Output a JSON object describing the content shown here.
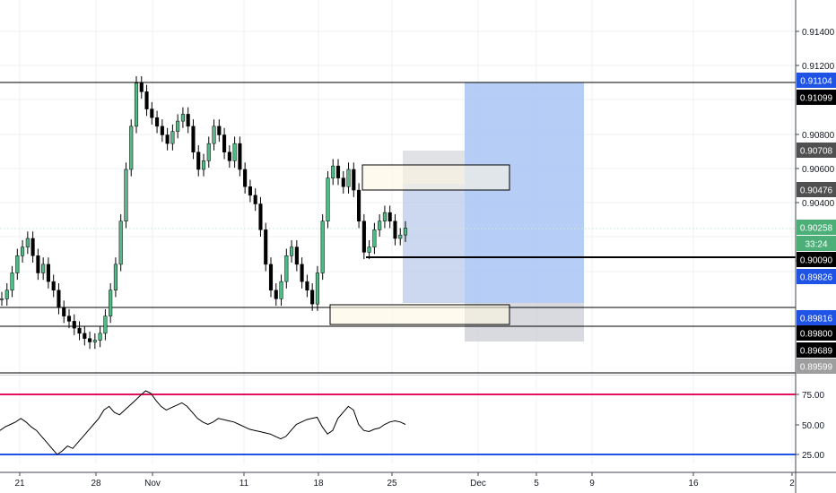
{
  "chart_data": [
    {
      "type": "candlestick",
      "title": "",
      "ylim": [
        0.89599,
        0.915
      ],
      "ytick_labels": [
        "0.91400",
        "0.91200",
        "0.90800",
        "0.90600",
        "0.90400",
        "0.90000"
      ],
      "x_tick_labels": [
        "21",
        "28",
        "Nov",
        "11",
        "18",
        "25",
        "Dec",
        "5",
        "9",
        "16",
        "2"
      ],
      "grid": true,
      "horizontal_levels": [
        0.91104,
        0.9009,
        0.89816,
        0.89689,
        0.89599
      ],
      "price_labels": [
        {
          "text": "0.91104",
          "color": "#1e53e5",
          "text_color": "#ffffff"
        },
        {
          "text": "0.91099",
          "color": "#000000",
          "text_color": "#ffffff"
        },
        {
          "text": "0.90708",
          "color": "#505050",
          "text_color": "#ffffff"
        },
        {
          "text": "0.90476",
          "color": "#505050",
          "text_color": "#ffffff"
        },
        {
          "text": "0.90258",
          "color": "#4caf78",
          "text_color": "#ffffff"
        },
        {
          "text": "33:24",
          "color": "#4caf78",
          "text_color": "#ffffff"
        },
        {
          "text": "0.90090",
          "color": "#000000",
          "text_color": "#ffffff"
        },
        {
          "text": "0.89826",
          "color": "#1e53e5",
          "text_color": "#ffffff"
        },
        {
          "text": "0.89816",
          "color": "#1e53e5",
          "text_color": "#ffffff"
        },
        {
          "text": "0.89800",
          "color": "#000000",
          "text_color": "#ffffff"
        },
        {
          "text": "0.89689",
          "color": "#000000",
          "text_color": "#ffffff"
        },
        {
          "text": "0.89599",
          "color": "#9e9e9e",
          "text_color": "#ffffff"
        }
      ],
      "candles_close": [
        0.8985,
        0.899,
        0.9,
        0.901,
        0.9015,
        0.902,
        0.901,
        0.9,
        0.9005,
        0.8995,
        0.899,
        0.898,
        0.8975,
        0.8972,
        0.8968,
        0.8965,
        0.8962,
        0.896,
        0.8961,
        0.8965,
        0.8975,
        0.899,
        0.9005,
        0.903,
        0.906,
        0.9085,
        0.911,
        0.9105,
        0.9095,
        0.909,
        0.9085,
        0.908,
        0.9075,
        0.9082,
        0.9088,
        0.9092,
        0.9085,
        0.907,
        0.906,
        0.9065,
        0.9075,
        0.9085,
        0.908,
        0.907,
        0.9065,
        0.9075,
        0.906,
        0.905,
        0.9045,
        0.904,
        0.9025,
        0.9005,
        0.899,
        0.8985,
        0.8995,
        0.901,
        0.9015,
        0.9005,
        0.8995,
        0.899,
        0.8982,
        0.9,
        0.903,
        0.9055,
        0.9062,
        0.9055,
        0.905,
        0.906,
        0.9048,
        0.903,
        0.9012,
        0.9015,
        0.9025,
        0.903,
        0.9035,
        0.903,
        0.902,
        0.9022,
        0.9026
      ],
      "position_box": {
        "entry": 0.90476,
        "target": 0.91104,
        "stop": 0.89826
      },
      "zones": [
        {
          "top": 0.9062,
          "bottom": 0.90476,
          "label": ""
        },
        {
          "top": 0.89826,
          "bottom": 0.8972,
          "label": ""
        }
      ]
    },
    {
      "type": "line",
      "title": "",
      "ylim": [
        0,
        100
      ],
      "ytick_labels": [
        "75.00",
        "50.00",
        "25.00"
      ],
      "hlines": [
        {
          "value": 75,
          "color": "#e0115f"
        },
        {
          "value": 25,
          "color": "#1e53e5"
        }
      ],
      "values": [
        45,
        48,
        50,
        52,
        55,
        52,
        48,
        45,
        40,
        35,
        30,
        25,
        28,
        32,
        30,
        35,
        40,
        45,
        50,
        55,
        62,
        65,
        60,
        58,
        62,
        66,
        70,
        74,
        78,
        76,
        70,
        65,
        62,
        64,
        66,
        68,
        65,
        60,
        55,
        52,
        50,
        52,
        55,
        54,
        53,
        52,
        50,
        48,
        46,
        45,
        44,
        43,
        42,
        40,
        38,
        40,
        45,
        50,
        52,
        54,
        55,
        56,
        48,
        42,
        45,
        55,
        60,
        65,
        62,
        50,
        45,
        44,
        46,
        47,
        50,
        52,
        53,
        52,
        50
      ]
    }
  ]
}
